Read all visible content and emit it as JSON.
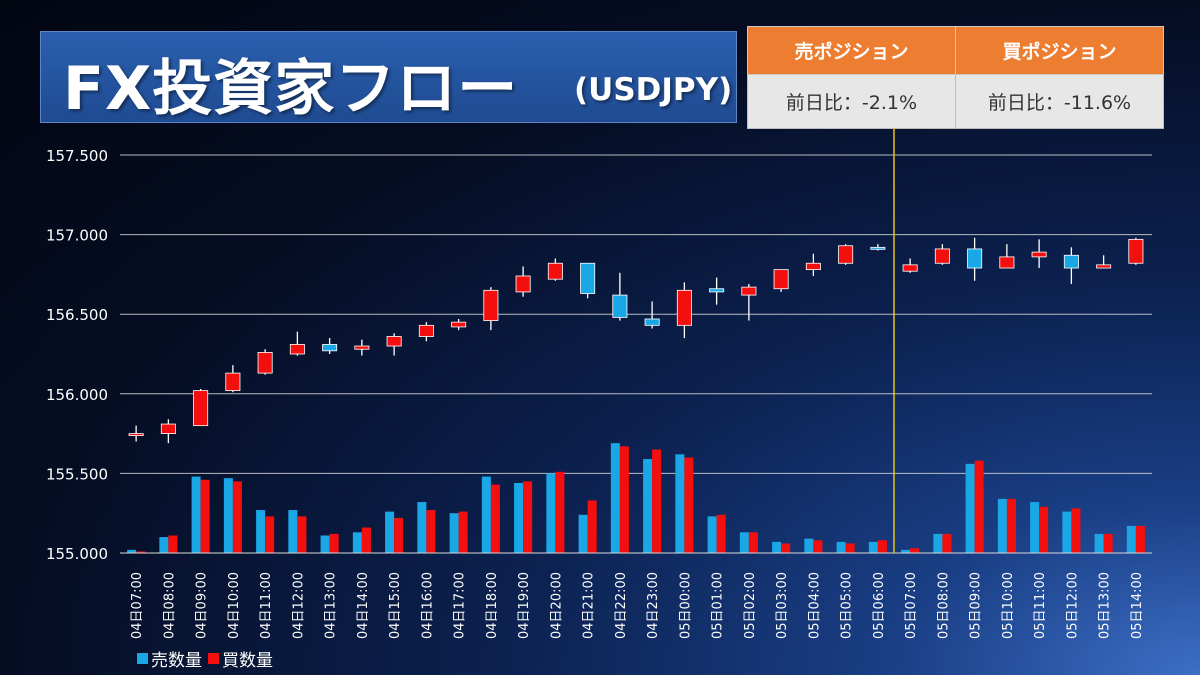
{
  "header": {
    "title": "FX投資家フロー",
    "subtitle": "(USDJPY)"
  },
  "positions": {
    "sell_label": "売ポジション",
    "buy_label": "買ポジション",
    "sell_change": "前日比：-2.1%",
    "buy_change": "前日比：-11.6%"
  },
  "legend": {
    "sell": "売数量",
    "buy": "買数量"
  },
  "colors": {
    "sell": "#1aa7e6",
    "buy": "#f40f0f",
    "gridline": "#d8d8d8",
    "divider": "#e7c21a"
  },
  "chart_data": {
    "type": "candlestick",
    "ylim": [
      155.0,
      157.5
    ],
    "yticks": [
      "155.000",
      "155.500",
      "156.000",
      "156.500",
      "157.000",
      "157.500"
    ],
    "ytick_values": [
      155.0,
      155.5,
      156.0,
      156.5,
      157.0,
      157.5
    ],
    "categories": [
      "04日07:00",
      "04日08:00",
      "04日09:00",
      "04日10:00",
      "04日11:00",
      "04日12:00",
      "04日13:00",
      "04日14:00",
      "04日15:00",
      "04日16:00",
      "04日17:00",
      "04日18:00",
      "04日19:00",
      "04日20:00",
      "04日21:00",
      "04日22:00",
      "04日23:00",
      "05日00:00",
      "05日01:00",
      "05日02:00",
      "05日03:00",
      "05日04:00",
      "05日05:00",
      "05日06:00",
      "05日07:00",
      "05日08:00",
      "05日09:00",
      "05日10:00",
      "05日11:00",
      "05日12:00",
      "05日13:00",
      "05日14:00"
    ],
    "ohlc": [
      [
        155.75,
        155.8,
        155.7,
        155.75
      ],
      [
        155.75,
        155.84,
        155.69,
        155.81
      ],
      [
        155.8,
        156.03,
        155.8,
        156.02
      ],
      [
        156.02,
        156.18,
        156.01,
        156.13
      ],
      [
        156.13,
        156.28,
        156.12,
        156.26
      ],
      [
        156.25,
        156.39,
        156.24,
        156.31
      ],
      [
        156.31,
        156.35,
        156.25,
        156.27
      ],
      [
        156.28,
        156.34,
        156.24,
        156.3
      ],
      [
        156.3,
        156.38,
        156.24,
        156.36
      ],
      [
        156.36,
        156.45,
        156.33,
        156.43
      ],
      [
        156.42,
        156.47,
        156.4,
        156.45
      ],
      [
        156.46,
        156.67,
        156.4,
        156.65
      ],
      [
        156.64,
        156.8,
        156.61,
        156.74
      ],
      [
        156.72,
        156.85,
        156.71,
        156.82
      ],
      [
        156.82,
        156.82,
        156.6,
        156.63
      ],
      [
        156.62,
        156.76,
        156.46,
        156.48
      ],
      [
        156.47,
        156.58,
        156.41,
        156.43
      ],
      [
        156.43,
        156.7,
        156.35,
        156.65
      ],
      [
        156.66,
        156.73,
        156.56,
        156.64
      ],
      [
        156.62,
        156.69,
        156.46,
        156.67
      ],
      [
        156.66,
        156.78,
        156.64,
        156.78
      ],
      [
        156.78,
        156.88,
        156.74,
        156.82
      ],
      [
        156.82,
        156.94,
        156.81,
        156.93
      ],
      [
        156.92,
        156.94,
        156.9,
        156.91
      ],
      [
        156.77,
        156.85,
        156.76,
        156.81
      ],
      [
        156.82,
        156.94,
        156.81,
        156.91
      ],
      [
        156.91,
        156.98,
        156.71,
        156.79
      ],
      [
        156.79,
        156.94,
        156.79,
        156.86
      ],
      [
        156.86,
        156.97,
        156.79,
        156.89
      ],
      [
        156.87,
        156.92,
        156.69,
        156.79
      ],
      [
        156.79,
        156.87,
        156.79,
        156.81
      ],
      [
        156.82,
        156.98,
        156.81,
        156.97
      ]
    ],
    "sell_volume": [
      155.02,
      155.1,
      155.48,
      155.47,
      155.27,
      155.27,
      155.11,
      155.13,
      155.26,
      155.32,
      155.25,
      155.48,
      155.44,
      155.5,
      155.24,
      155.69,
      155.59,
      155.62,
      155.23,
      155.13,
      155.07,
      155.09,
      155.07,
      155.07,
      155.02,
      155.12,
      155.56,
      155.34,
      155.32,
      155.26,
      155.12,
      155.17
    ],
    "buy_volume": [
      155.01,
      155.11,
      155.46,
      155.45,
      155.23,
      155.23,
      155.12,
      155.16,
      155.22,
      155.27,
      155.26,
      155.43,
      155.45,
      155.51,
      155.33,
      155.67,
      155.65,
      155.6,
      155.24,
      155.13,
      155.06,
      155.08,
      155.06,
      155.08,
      155.03,
      155.12,
      155.58,
      155.34,
      155.29,
      155.28,
      155.12,
      155.17
    ],
    "divider_after": "05日06:00"
  }
}
